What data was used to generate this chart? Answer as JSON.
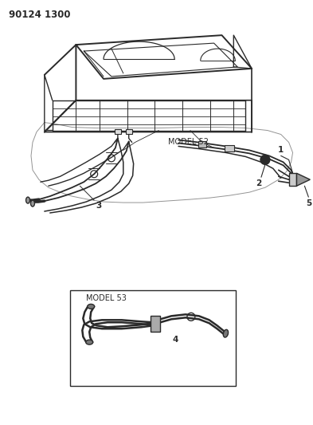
{
  "title_code": "90124 1300",
  "background_color": "#ffffff",
  "line_color": "#2a2a2a",
  "text_color": "#2a2a2a",
  "fig_width": 3.93,
  "fig_height": 5.33,
  "model52_label": "MODEL 52",
  "model53_label": "MODEL 53",
  "part_numbers": [
    "1",
    "2",
    "3",
    "4",
    "5"
  ],
  "title_fontsize": 8.5,
  "label_fontsize": 7,
  "annotation_fontsize": 7.5
}
